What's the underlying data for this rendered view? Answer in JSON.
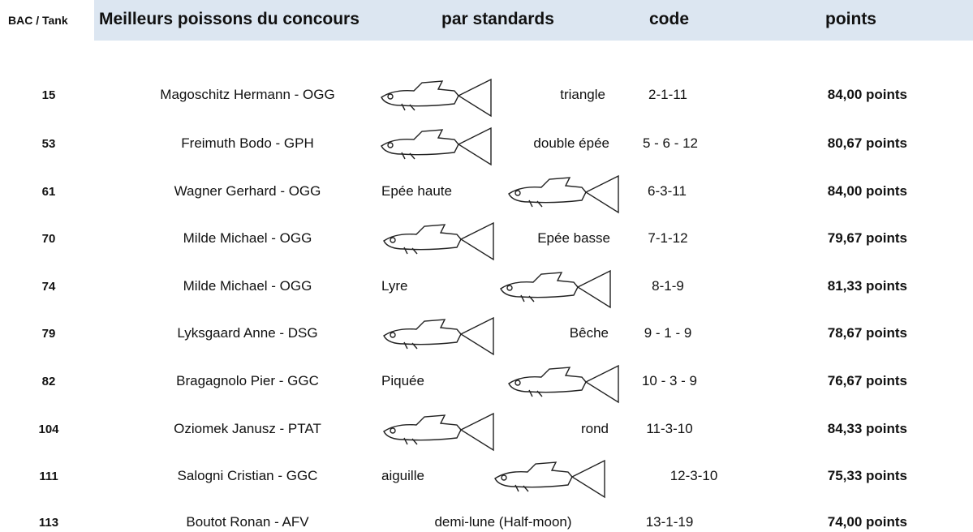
{
  "header": {
    "tank": "BAC / Tank",
    "name": "Meilleurs poissons du concours",
    "standard": "par standards",
    "code": "code",
    "points": "points"
  },
  "rows": [
    {
      "tank": "15",
      "name": "Magoschitz Hermann - OGG",
      "standard": "triangle",
      "code": "2-1-11",
      "points": "84,00 points"
    },
    {
      "tank": "53",
      "name": "Freimuth Bodo - GPH",
      "standard": "double épée",
      "code": "5 - 6 - 12",
      "points": "80,67 points"
    },
    {
      "tank": "61",
      "name": "Wagner Gerhard - OGG",
      "standard": "Epée haute",
      "code": "6-3-11",
      "points": "84,00 points"
    },
    {
      "tank": "70",
      "name": "Milde Michael - OGG",
      "standard": "Epée basse",
      "code": "7-1-12",
      "points": "79,67 points"
    },
    {
      "tank": "74",
      "name": "Milde Michael - OGG",
      "standard": "Lyre",
      "code": "8-1-9",
      "points": "81,33 points"
    },
    {
      "tank": "79",
      "name": "Lyksgaard Anne - DSG",
      "standard": "Bêche",
      "code": "9 - 1 - 9",
      "points": "78,67 points"
    },
    {
      "tank": "82",
      "name": "Bragagnolo Pier - GGC",
      "standard": "Piquée",
      "code": "10 - 3 - 9",
      "points": "76,67 points"
    },
    {
      "tank": "104",
      "name": "Oziomek Janusz - PTAT",
      "standard": "rond",
      "code": "11-3-10",
      "points": "84,33 points"
    },
    {
      "tank": "111",
      "name": "Salogni Cristian - GGC",
      "standard": "aiguille",
      "code": "12-3-10",
      "points": "75,33 points"
    },
    {
      "tank": "113",
      "name": "Boutot Ronan - AFV",
      "standard": "demi-lune (Half-moon)",
      "code": "13-1-19",
      "points": "74,00 points"
    }
  ]
}
